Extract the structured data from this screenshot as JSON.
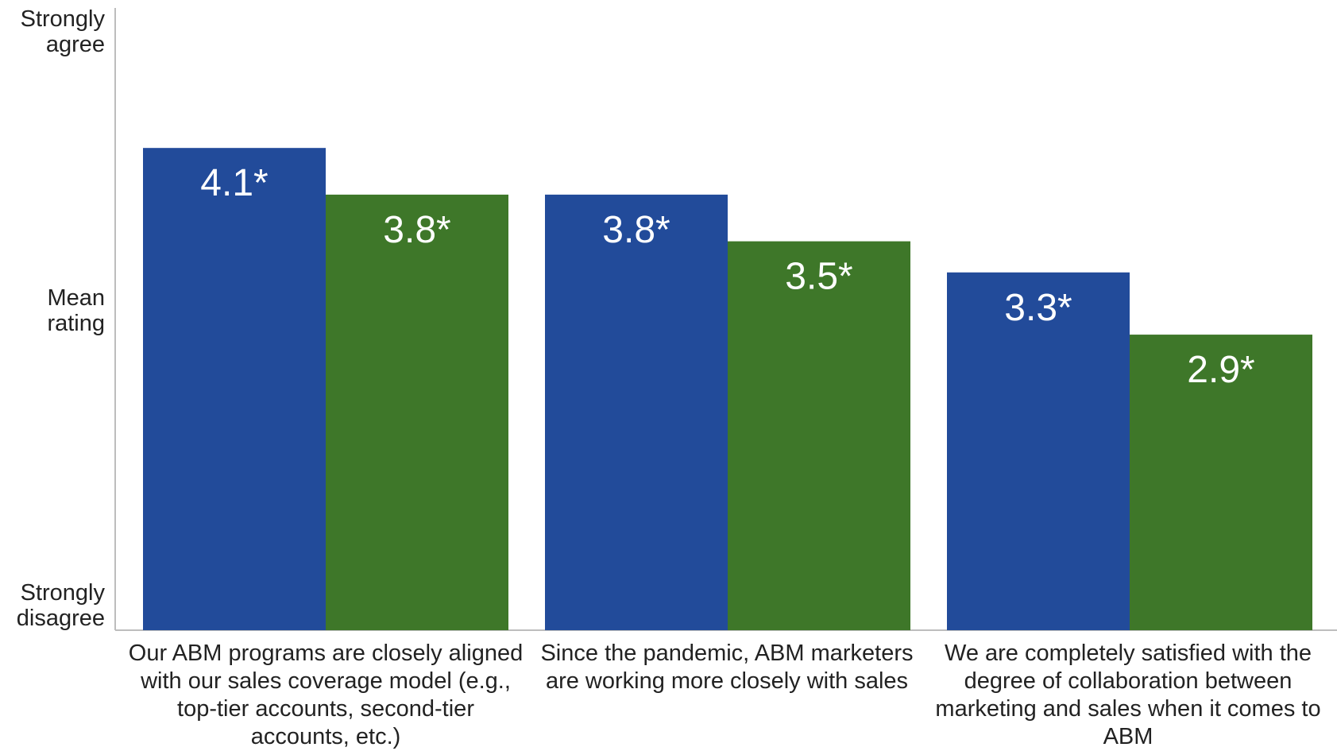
{
  "chart_data": {
    "type": "bar",
    "categories": [
      "Our ABM programs are closely aligned with our sales coverage model (e.g., top-tier accounts, second-tier accounts, etc.)",
      "Since the pandemic, ABM marketers are working more closely with sales",
      "We are completely satisfied with the degree of collaboration between marketing and sales when it comes to ABM"
    ],
    "series": [
      {
        "values": [
          4.1,
          3.8,
          3.3
        ],
        "labels": [
          "4.1*",
          "3.8*",
          "3.3*"
        ],
        "color": "#224B9A"
      },
      {
        "values": [
          3.8,
          3.5,
          2.9
        ],
        "labels": [
          "3.8*",
          "3.5*",
          "2.9*"
        ],
        "color": "#3E7729"
      }
    ],
    "ylim": [
      1,
      5
    ],
    "y_axis_labels": {
      "top": "Strongly agree",
      "middle": "Mean rating",
      "bottom": "Strongly disagree"
    },
    "grid": false,
    "legend": "none"
  }
}
